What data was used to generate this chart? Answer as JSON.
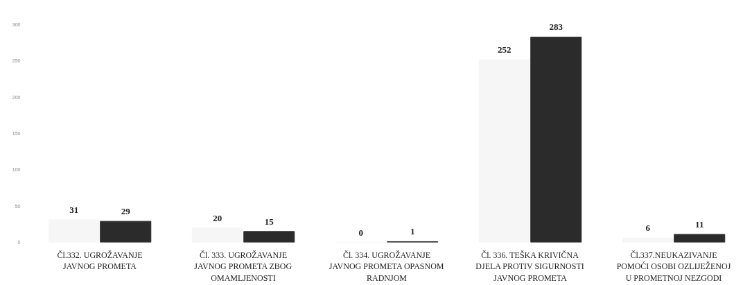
{
  "chart_data": {
    "type": "bar",
    "categories": [
      "Čl.332. UGROŽAVANJE JAVNOG PROMETA",
      "Čl. 333. UGROŽAVANJE JAVNOG PROMETA ZBOG OMAMLJENOSTI",
      "Čl. 334. UGROŽAVANJE JAVNOG PROMETA OPASNOM RADNJOM",
      "Čl. 336. TEŠKA KRIVIČNA DJELA PROTIV SIGURNOSTI JAVNOG PROMETA",
      "Čl.337.NEUKAZIVANJE POMOĆI OSOBI OZLIJEŽENOJ U PROMETNOJ NEZGODI"
    ],
    "series": [
      {
        "color": "#f6f6f6",
        "values": [
          31,
          20,
          0,
          252,
          6
        ]
      },
      {
        "color": "#2b2b2b",
        "values": [
          29,
          15,
          1,
          283,
          11
        ]
      }
    ],
    "ylim": [
      0,
      300
    ],
    "yticks": [
      0,
      50,
      100,
      150,
      200,
      250,
      300
    ],
    "data_labels": true,
    "grid": false
  }
}
